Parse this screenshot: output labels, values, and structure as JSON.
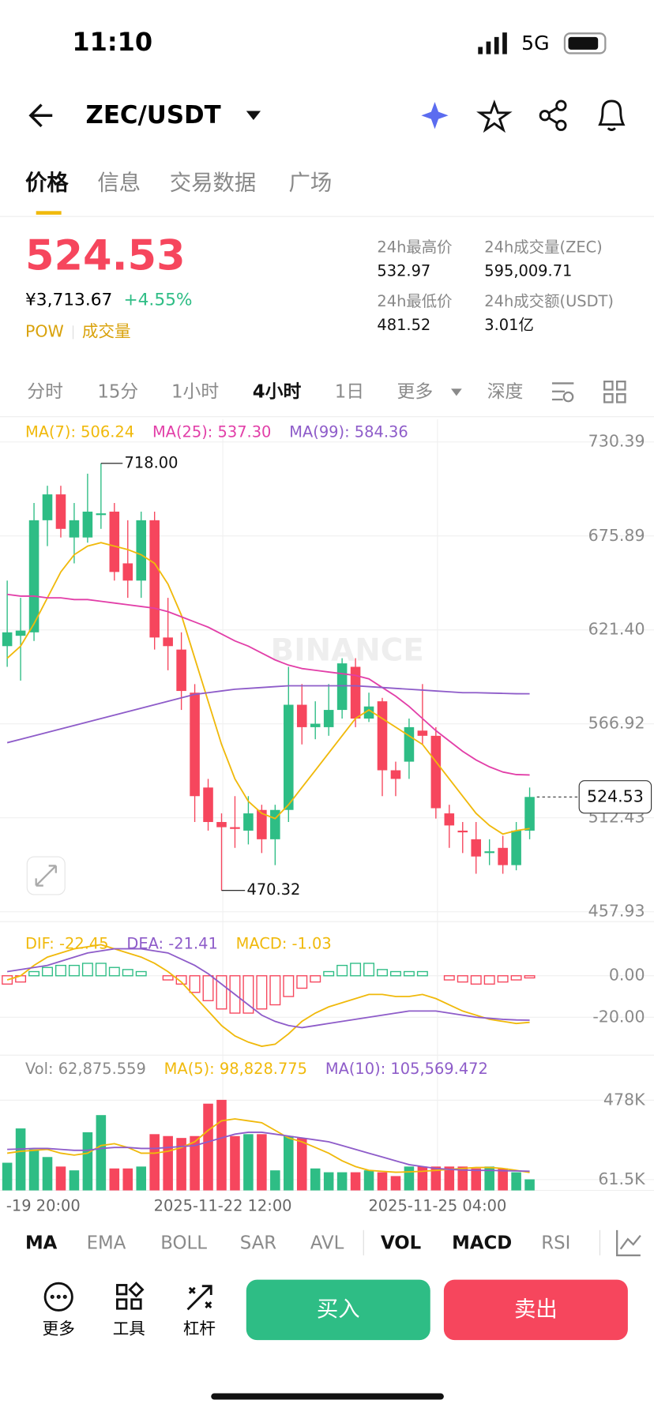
{
  "status": {
    "time": "11:10",
    "network": "5G"
  },
  "header": {
    "pair": "ZEC/USDT"
  },
  "tabs": [
    "价格",
    "信息",
    "交易数据",
    "广场"
  ],
  "price": {
    "last": "524.53",
    "cny": "¥3,713.67",
    "change": "+4.55%",
    "tags": [
      "POW",
      "成交量"
    ]
  },
  "stats": [
    {
      "label": "24h最高价",
      "value": "532.97"
    },
    {
      "label": "24h成交量(ZEC)",
      "value": "595,009.71"
    },
    {
      "label": "24h最低价",
      "value": "481.52"
    },
    {
      "label": "24h成交额(USDT)",
      "value": "3.01亿"
    }
  ],
  "intervals": [
    "分时",
    "15分",
    "1小时",
    "4小时",
    "1日",
    "更多",
    "深度"
  ],
  "chart_data": {
    "type": "candlestick",
    "watermark": "BINANCE",
    "up_color": "#2ebd85",
    "down_color": "#f6465d",
    "open": [
      612,
      618,
      620,
      685,
      700,
      675,
      675,
      688,
      690,
      660,
      650,
      685,
      617,
      610,
      585,
      530,
      510,
      507,
      505,
      517,
      500,
      517,
      578,
      565,
      565,
      575,
      600,
      570,
      580,
      540,
      545,
      563,
      560,
      515,
      505,
      500,
      492,
      495,
      485,
      505
    ],
    "close": [
      620,
      621,
      685,
      700,
      680,
      685,
      690,
      689,
      655,
      650,
      685,
      617,
      612,
      586,
      525,
      510,
      507,
      506,
      515,
      500,
      517,
      578,
      565,
      567,
      575,
      602,
      570,
      577,
      540,
      535,
      565,
      560,
      518,
      508,
      504,
      490,
      493,
      485,
      505,
      524.53
    ],
    "high": [
      650,
      640,
      695,
      705,
      705,
      695,
      712,
      718,
      695,
      685,
      690,
      690,
      640,
      620,
      590,
      535,
      515,
      525,
      525,
      520,
      520,
      600,
      590,
      580,
      590,
      605,
      605,
      585,
      582,
      545,
      570,
      590,
      565,
      520,
      510,
      510,
      500,
      502,
      510,
      530
    ],
    "low": [
      600,
      592,
      615,
      670,
      675,
      660,
      672,
      680,
      650,
      640,
      640,
      610,
      598,
      575,
      510,
      505,
      470.32,
      495,
      497,
      492,
      485,
      510,
      555,
      558,
      560,
      570,
      565,
      568,
      525,
      525,
      535,
      555,
      512,
      495,
      492,
      480,
      485,
      480,
      482,
      500
    ],
    "series": [
      {
        "name": "MA(7): 506.24",
        "color": "#f0b90b",
        "values": [
          605,
          612,
          625,
          640,
          655,
          665,
          670,
          672,
          670,
          668,
          665,
          660,
          648,
          630,
          605,
          580,
          555,
          535,
          522,
          515,
          512,
          520,
          530,
          540,
          550,
          560,
          570,
          575,
          570,
          565,
          560,
          555,
          545,
          535,
          525,
          515,
          508,
          503,
          505,
          506.24
        ]
      },
      {
        "name": "MA(25): 537.30",
        "color": "#e23fa8",
        "values": [
          642,
          641,
          641,
          640,
          640,
          639,
          639,
          638,
          637,
          636,
          635,
          634,
          632,
          629,
          626,
          623,
          619,
          615,
          612,
          608,
          604,
          601,
          599,
          598,
          597,
          596,
          595,
          593,
          588,
          583,
          577,
          570,
          563,
          557,
          551,
          546,
          542,
          539,
          537.5,
          537.3
        ]
      },
      {
        "name": "MA(99): 584.36",
        "color": "#8e5cc9",
        "values": [
          556,
          558,
          560,
          562,
          564,
          566,
          568,
          570,
          572,
          574,
          576,
          578,
          580,
          582,
          584,
          585,
          586,
          587,
          587.5,
          588,
          588.5,
          589,
          589,
          589,
          589,
          589,
          589,
          588.5,
          588,
          587.5,
          587,
          586.5,
          586,
          585.5,
          585,
          585,
          584.8,
          584.6,
          584.4,
          584.36
        ]
      }
    ],
    "max_label": "718.00",
    "min_label": "470.32",
    "last_label": "524.53",
    "ylim": [
      452.2,
      743.5
    ],
    "yticks": [
      457.93,
      512.43,
      566.92,
      {
        "value": 621.4,
        "label": "621.40"
      },
      675.89,
      730.39
    ],
    "x_labels": [
      "-19 20:00",
      "2025-11-22 12:00",
      "2025-11-25 04:00"
    ],
    "macd": {
      "histogram": [
        -4,
        -3,
        2,
        4,
        5,
        5,
        6,
        6,
        4,
        3,
        2,
        0,
        -2,
        -4,
        -8,
        -12,
        -16,
        -18,
        -18,
        -16,
        -14,
        -10,
        -6,
        -3,
        2,
        5,
        6,
        6,
        3,
        2,
        2,
        2,
        0,
        -2,
        -3,
        -4,
        -4,
        -3,
        -2,
        -1.03
      ],
      "histogram_label": "MACD: -1.03",
      "histogram_color": "#f0b90b",
      "series": [
        {
          "name": "DIF: -22.45",
          "color": "#f0b90b",
          "values": [
            -2,
            0,
            5,
            9,
            11,
            13,
            14,
            15,
            13,
            11,
            9,
            6,
            2,
            -3,
            -10,
            -17,
            -24,
            -29,
            -32,
            -34,
            -33,
            -28,
            -22,
            -18,
            -15,
            -13,
            -11,
            -9,
            -9,
            -10,
            -10,
            -9,
            -11,
            -14,
            -17,
            -19,
            -21,
            -22,
            -23,
            -22.45
          ]
        },
        {
          "name": "DEA: -21.41",
          "color": "#8e5cc9",
          "values": [
            2,
            3,
            4,
            5,
            7,
            9,
            11,
            12,
            13,
            13,
            13,
            12,
            11,
            8,
            5,
            1,
            -4,
            -9,
            -14,
            -19,
            -22,
            -24,
            -25,
            -24,
            -23,
            -22,
            -21,
            -20,
            -19,
            -18,
            -17,
            -17,
            -17,
            -18,
            -19,
            -20,
            -20.5,
            -21,
            -21.3,
            -21.41
          ]
        }
      ],
      "ylim": [
        -37.4,
        22.6
      ],
      "yticks": [
        {
          "value": 0,
          "label": "0.00"
        },
        {
          "value": -20,
          "label": "-20.00"
        }
      ]
    },
    "volume": {
      "label": "Vol: 62,875.559",
      "label_color": "#888888",
      "values": [
        150,
        330,
        220,
        180,
        130,
        110,
        310,
        400,
        120,
        120,
        130,
        300,
        290,
        280,
        290,
        460,
        480,
        290,
        300,
        300,
        110,
        290,
        280,
        120,
        100,
        100,
        100,
        110,
        100,
        80,
        130,
        130,
        130,
        130,
        130,
        120,
        130,
        120,
        100,
        62.875559
      ],
      "series": [
        {
          "name": "MA(5): 98,828.775",
          "color": "#f0b90b",
          "values": [
            200,
            210,
            215,
            220,
            200,
            190,
            200,
            240,
            250,
            230,
            200,
            200,
            210,
            230,
            260,
            320,
            370,
            380,
            370,
            360,
            320,
            280,
            260,
            230,
            200,
            160,
            130,
            110,
            105,
            100,
            102,
            105,
            110,
            115,
            120,
            125,
            125,
            120,
            110,
            98.828775
          ]
        },
        {
          "name": "MA(10): 105,569.472",
          "color": "#8e5cc9",
          "values": [
            220,
            222,
            225,
            225,
            220,
            215,
            215,
            225,
            230,
            230,
            225,
            225,
            230,
            235,
            240,
            260,
            280,
            300,
            310,
            310,
            300,
            290,
            280,
            270,
            260,
            240,
            220,
            200,
            180,
            160,
            140,
            130,
            120,
            115,
            112,
            110,
            110,
            108,
            107,
            105.569472
          ]
        }
      ],
      "ylim": [
        4.7,
        691
      ],
      "yticks": [
        {
          "value": 478,
          "label": "478K"
        },
        {
          "value": 61.5,
          "label": "61.5K"
        }
      ]
    }
  },
  "indicators": [
    "MA",
    "EMA",
    "BOLL",
    "SAR",
    "AVL",
    "VOL",
    "MACD",
    "RSI"
  ],
  "actions": [
    "更多",
    "工具",
    "杠杆"
  ],
  "buy": "买入",
  "sell": "卖出"
}
